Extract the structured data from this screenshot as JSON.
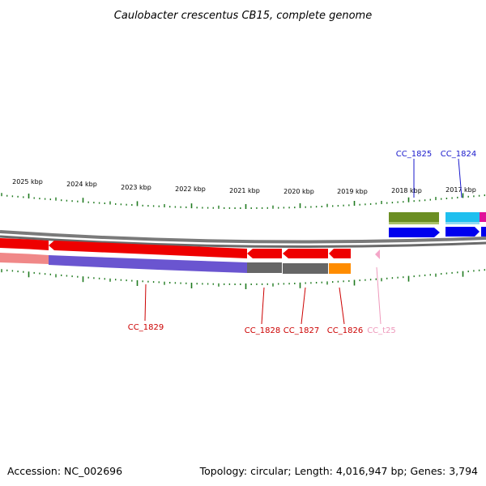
{
  "title": "Caulobacter crescentus CB15, complete genome",
  "footer": {
    "accession": "Accession: NC_002696",
    "summary": "Topology: circular; Length: 4,016,947 bp; Genes: 3,794"
  },
  "colors": {
    "tick": "#1f7a1f",
    "backbone": "#7a7a7a",
    "forward_label": "#1a1acc",
    "reverse_label": "#cc0000",
    "trna_label": "#ee99bb"
  },
  "ticks": [
    {
      "label": "2025 kbp"
    },
    {
      "label": "2024 kbp"
    },
    {
      "label": "2023 kbp"
    },
    {
      "label": "2022 kbp"
    },
    {
      "label": "2021 kbp"
    },
    {
      "label": "2020 kbp"
    },
    {
      "label": "2019 kbp"
    },
    {
      "label": "2018 kbp"
    },
    {
      "label": "2017 kbp"
    }
  ],
  "genes": [
    {
      "name": "CC_1825",
      "strand": "forward",
      "color": "#1a1acc"
    },
    {
      "name": "CC_1824",
      "strand": "forward",
      "color": "#1a1acc"
    },
    {
      "name": "CC_1829",
      "strand": "reverse",
      "color": "#cc0000"
    },
    {
      "name": "CC_1828",
      "strand": "reverse",
      "color": "#cc0000"
    },
    {
      "name": "CC_1827",
      "strand": "reverse",
      "color": "#cc0000"
    },
    {
      "name": "CC_1826",
      "strand": "reverse",
      "color": "#cc0000"
    },
    {
      "name": "CC_t25",
      "strand": "reverse",
      "color": "#ee99bb"
    }
  ]
}
